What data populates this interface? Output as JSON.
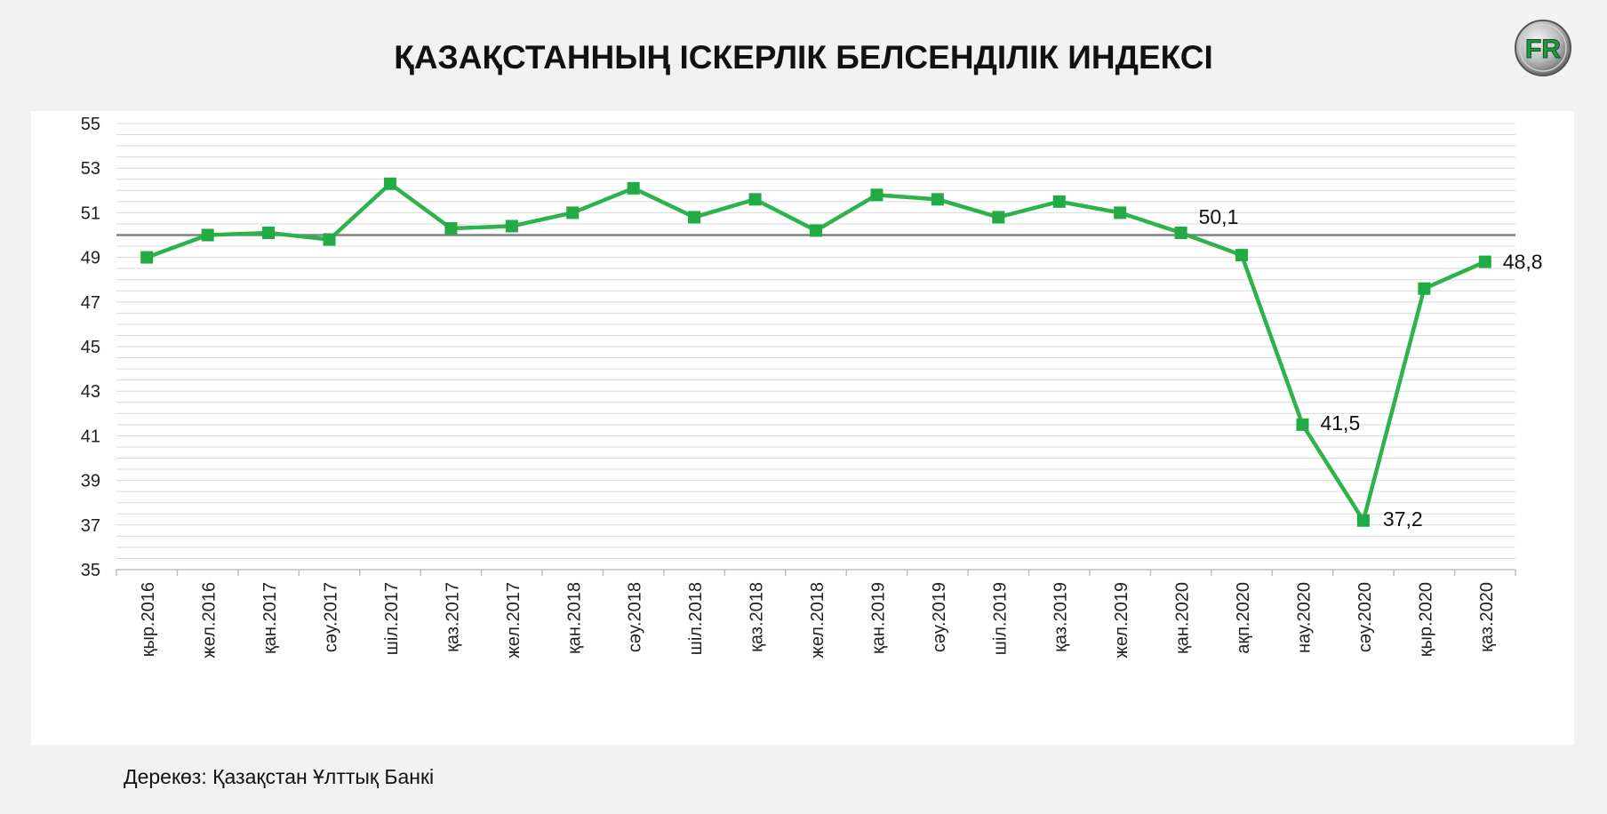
{
  "header": {
    "title": "ҚАЗАҚСТАННЫҢ ІСКЕРЛІК БЕЛСЕНДІЛІК ИНДЕКСІ",
    "logo_text": "FR"
  },
  "footer": {
    "source": "Дерекөз: Қазақстан Ұлттық Банкі"
  },
  "colors": {
    "line": "#2db34a",
    "marker": "#22aa44",
    "reference_line": "#808080",
    "grid": "#d9d9d9"
  },
  "chart_data": {
    "type": "line",
    "title": "ҚАЗАҚСТАННЫҢ ІСКЕРЛІК БЕЛСЕНДІЛІК ИНДЕКСІ",
    "xlabel": "",
    "ylabel": "",
    "ylim": [
      35,
      55
    ],
    "yticks": [
      "35",
      "37",
      "39",
      "41",
      "43",
      "45",
      "47",
      "49",
      "51",
      "53",
      "55"
    ],
    "grid": "minor horizontal gridlines",
    "legend": "none",
    "reference_line": 50,
    "categories": [
      "қыр.2016",
      "жел.2016",
      "қан.2017",
      "сәу.2017",
      "шіл.2017",
      "қаз.2017",
      "жел.2017",
      "қан.2018",
      "сәу.2018",
      "шіл.2018",
      "қаз.2018",
      "жел.2018",
      "қан.2019",
      "сәу.2019",
      "шіл.2019",
      "қаз.2019",
      "жел.2019",
      "қан.2020",
      "ақп.2020",
      "нау.2020",
      "сәу.2020",
      "қыр.2020",
      "қаз.2020"
    ],
    "series": [
      {
        "values": [
          49.0,
          50.0,
          50.1,
          49.8,
          52.3,
          50.3,
          50.4,
          51.0,
          52.1,
          50.8,
          51.6,
          50.2,
          51.8,
          51.6,
          50.8,
          51.5,
          51.0,
          50.1,
          49.1,
          41.5,
          37.2,
          47.6,
          48.8
        ]
      }
    ],
    "data_labels": [
      {
        "index": 17,
        "text": "50,1"
      },
      {
        "index": 19,
        "text": "41,5"
      },
      {
        "index": 20,
        "text": "37,2"
      },
      {
        "index": 22,
        "text": "48,8"
      }
    ]
  }
}
